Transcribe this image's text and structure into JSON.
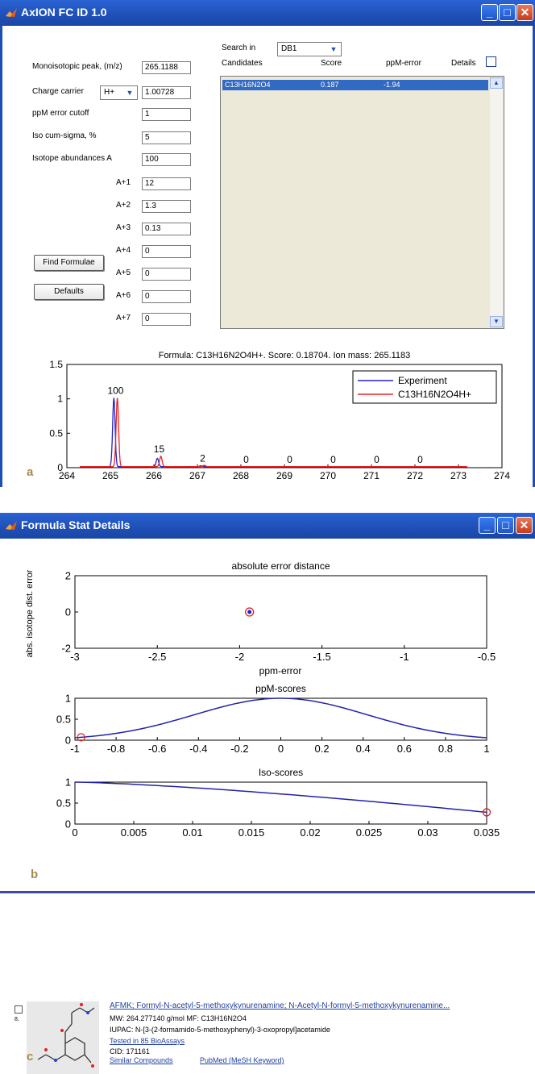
{
  "window1": {
    "title": "AxION FC ID 1.0",
    "search_in_label": "Search in",
    "db_value": "DB1",
    "candidates_label": "Candidates",
    "score_label": "Score",
    "ppm_error_header": "ppM-error",
    "details_label": "Details",
    "candidate_row": {
      "formula": "C13H16N2O4",
      "score": "0.187",
      "ppm": "-1.94"
    },
    "fields": {
      "monoisotopic_label": "Monoisotopic peak, (m/z)",
      "monoisotopic_value": "265.1188",
      "charge_carrier_label": "Charge carrier",
      "charge_carrier_select": "H+",
      "charge_carrier_value": "1.00728",
      "ppm_cutoff_label": "ppM error cutoff",
      "ppm_cutoff_value": "1",
      "iso_sigma_label": "Iso cum-sigma, %",
      "iso_sigma_value": "5",
      "iso_abund_label": "Isotope abundances A",
      "iso_abund_value": "100"
    },
    "isotopes": [
      {
        "label": "A+1",
        "value": "12"
      },
      {
        "label": "A+2",
        "value": "1.3"
      },
      {
        "label": "A+3",
        "value": "0.13"
      },
      {
        "label": "A+4",
        "value": "0"
      },
      {
        "label": "A+5",
        "value": "0"
      },
      {
        "label": "A+6",
        "value": "0"
      },
      {
        "label": "A+7",
        "value": "0"
      }
    ],
    "find_button": "Find Formulae",
    "defaults_button": "Defaults",
    "panel_letter": "a"
  },
  "window2": {
    "title": "Formula Stat Details",
    "panel_letter": "b"
  },
  "panel_c": {
    "letter": "c",
    "checkbox_index": "8.",
    "compound_title": "AFMK; Formyl-N-acetyl-5-methoxykynurenamine; N-Acetyl-N-formyl-5-methoxykynurenamine...",
    "mw_line": "MW: 264.277140 g/mol   MF: C13H16N2O4",
    "iupac_line": "IUPAC: N-[3-(2-formamido-5-methoxyphenyl)-3-oxopropyl]acetamide",
    "bioassays": "Tested in 85 BioAssays",
    "cid": "CID: 171161",
    "similar": "Similar Compounds",
    "pubmed": "PubMed (MeSH Keyword)"
  },
  "colors": {
    "titlebar": "#1e4fb5",
    "experiment": "#2222cc",
    "theoretical": "#ee2222",
    "caption": "#a88a4f"
  },
  "chart_data": [
    {
      "type": "line",
      "title": "Formula: C13H16N2O4H+. Score: 0.18704. Ion mass: 265.1183",
      "xlim": [
        264,
        274
      ],
      "ylim": [
        0,
        1.5
      ],
      "xticks": [
        264,
        265,
        266,
        267,
        268,
        269,
        270,
        271,
        272,
        273,
        274
      ],
      "yticks": [
        0,
        0.5,
        1,
        1.5
      ],
      "legend": "top-right",
      "series": [
        {
          "name": "Experiment",
          "color": "#2222cc",
          "peaks": [
            [
              265.12,
              1.0
            ],
            [
              266.12,
              0.12
            ],
            [
              267.12,
              0.013
            ]
          ]
        },
        {
          "name": "C13H16N2O4H+",
          "color": "#ee2222",
          "peaks": [
            [
              265.12,
              1.0
            ],
            [
              266.12,
              0.15
            ],
            [
              267.12,
              0.02
            ]
          ]
        }
      ],
      "annotations": [
        {
          "x": 265.12,
          "text": "100"
        },
        {
          "x": 266.12,
          "text": "15"
        },
        {
          "x": 267.12,
          "text": "2"
        },
        {
          "x": 268.12,
          "text": "0"
        },
        {
          "x": 269.12,
          "text": "0"
        },
        {
          "x": 270.12,
          "text": "0"
        },
        {
          "x": 271.12,
          "text": "0"
        },
        {
          "x": 272.12,
          "text": "0"
        }
      ]
    },
    {
      "type": "scatter",
      "title": "absolute error distance",
      "xlabel": "ppm-error",
      "ylabel": "abs. isotope dist. error",
      "xlim": [
        -3,
        -0.5
      ],
      "ylim": [
        -2,
        2
      ],
      "xticks": [
        -3,
        -2.5,
        -2,
        -1.5,
        -1,
        -0.5
      ],
      "yticks": [
        -2,
        0,
        2
      ],
      "points": [
        [
          -1.94,
          0
        ]
      ]
    },
    {
      "type": "line",
      "title": "ppM-scores",
      "xlim": [
        -1,
        1
      ],
      "ylim": [
        0,
        1
      ],
      "xticks": [
        -1,
        -0.8,
        -0.6,
        -0.4,
        -0.2,
        0,
        0.2,
        0.4,
        0.6,
        0.8,
        1
      ],
      "yticks": [
        0,
        0.5,
        1
      ],
      "curve": "gaussian",
      "sigma": 0.42,
      "marker": [
        -0.97,
        0.07
      ]
    },
    {
      "type": "line",
      "title": "Iso-scores",
      "xlim": [
        0,
        0.035
      ],
      "ylim": [
        0,
        1
      ],
      "xticks": [
        0,
        0.005,
        0.01,
        0.015,
        0.02,
        0.025,
        0.03,
        0.035
      ],
      "yticks": [
        0,
        0.5,
        1
      ],
      "curve": "decay",
      "marker": [
        0.035,
        0.28
      ]
    }
  ]
}
